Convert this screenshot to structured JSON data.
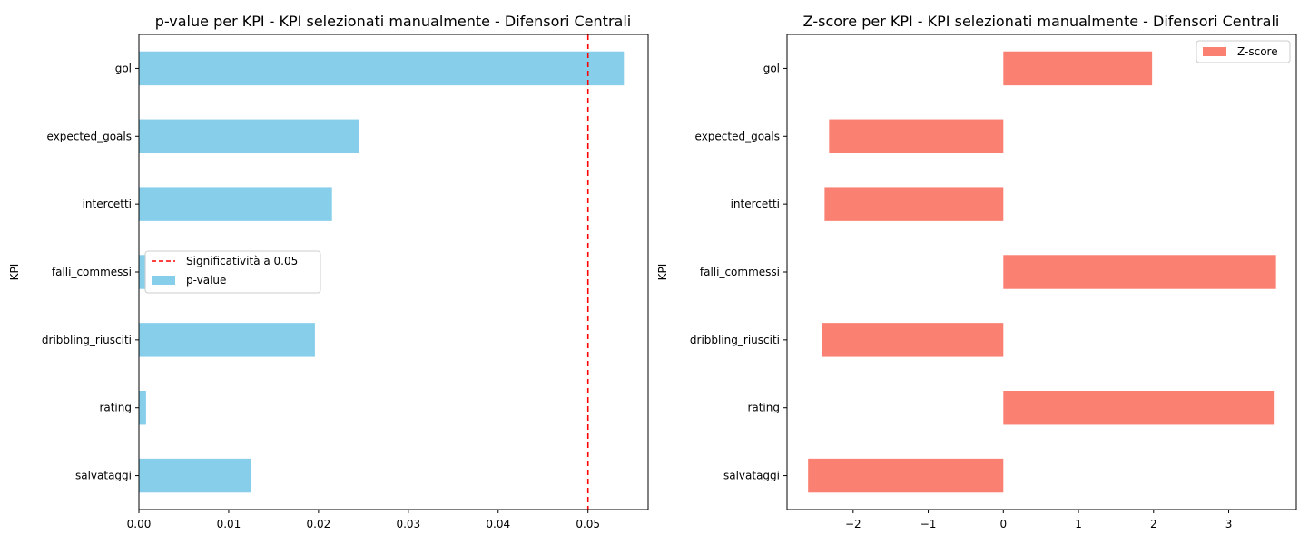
{
  "chart_data": [
    {
      "type": "bar",
      "orientation": "horizontal",
      "title": "p-value per KPI - KPI selezionati manualmente - Difensori Centrali",
      "ylabel": "KPI",
      "xlabel": "",
      "categories": [
        "gol",
        "expected_goals",
        "intercetti",
        "falli_commessi",
        "dribbling_riusciti",
        "rating",
        "salvataggi"
      ],
      "series": [
        {
          "name": "p-value",
          "color": "#87CEEB",
          "values": [
            0.054,
            0.0245,
            0.0215,
            0.0008,
            0.0196,
            0.0008,
            0.0125
          ]
        }
      ],
      "reference_line": {
        "name": "Significatività a 0.05",
        "x": 0.05,
        "color": "#ff0000",
        "style": "dashed"
      },
      "xlim": [
        0,
        0.0567
      ],
      "xticks": [
        "0.00",
        "0.01",
        "0.02",
        "0.03",
        "0.04",
        "0.05"
      ],
      "xtick_values": [
        0,
        0.01,
        0.02,
        0.03,
        0.04,
        0.05
      ],
      "legend_position": "center-left",
      "grid": false
    },
    {
      "type": "bar",
      "orientation": "horizontal",
      "title": "Z-score per KPI - KPI selezionati manualmente - Difensori Centrali",
      "ylabel": "KPI",
      "xlabel": "",
      "categories": [
        "gol",
        "expected_goals",
        "intercetti",
        "falli_commessi",
        "dribbling_riusciti",
        "rating",
        "salvataggi"
      ],
      "series": [
        {
          "name": "Z-score",
          "color": "#FA8072",
          "values": [
            1.98,
            -2.32,
            -2.38,
            3.63,
            -2.42,
            3.6,
            -2.6
          ]
        }
      ],
      "xlim": [
        -2.88,
        3.9
      ],
      "xticks": [
        "−2",
        "−1",
        "0",
        "1",
        "2",
        "3"
      ],
      "xtick_values": [
        -2,
        -1,
        0,
        1,
        2,
        3
      ],
      "legend_position": "top-right",
      "grid": false
    }
  ]
}
